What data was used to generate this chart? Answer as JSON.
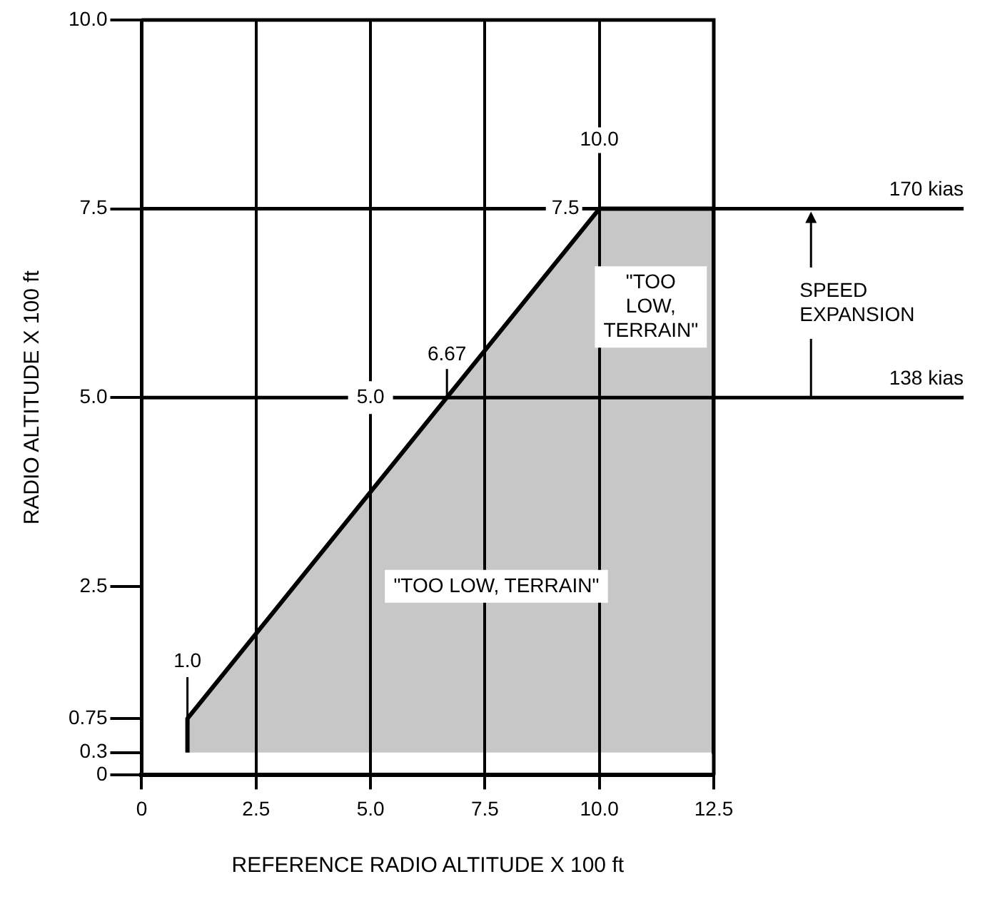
{
  "chart_data": {
    "type": "area",
    "xlabel": "REFERENCE RADIO ALTITUDE X 100 ft",
    "ylabel": "RADIO ALTITUDE X 100 ft",
    "series": [
      {
        "x": [
          1.0,
          1.0,
          10.0,
          12.5,
          12.5
        ],
        "values": [
          0.3,
          0.75,
          7.5,
          7.5,
          0.3
        ],
        "color": "#000000"
      }
    ],
    "xlim": [
      0,
      12.5
    ],
    "xticks": [
      0,
      2.5,
      {
        "value": 5,
        "label": "5.0"
      },
      7.5,
      {
        "value": 10,
        "label": "10.0"
      },
      12.5
    ],
    "ylim": [
      0,
      10
    ],
    "yticks": [
      0,
      0.3,
      0.75,
      2.5,
      {
        "value": 5,
        "label": "5.0"
      },
      7.5,
      {
        "value": 10,
        "label": "10.0"
      }
    ],
    "grid": "x",
    "ref_lines": [
      {
        "axis": "y",
        "value": 7.5,
        "label": "170 kias"
      },
      {
        "axis": "y",
        "value": 5.0,
        "label": "138 kias"
      }
    ],
    "annotations": [
      {
        "text": "10.0",
        "x": 10.0,
        "y": 7.5
      },
      {
        "text": "7.5",
        "x": 10.0,
        "y": 7.5
      },
      {
        "text": "6.67",
        "x": 6.67,
        "y": 5.0
      },
      {
        "text": "5.0",
        "x": 5.0,
        "y": 5.0
      },
      {
        "text": "1.0",
        "x": 1.0,
        "y": 0.75
      },
      "\"TOO LOW, TERRAIN\"",
      "\"TOO\nLOW,\nTERRAIN\"",
      "SPEED\nEXPANSION"
    ],
    "marker": "none"
  }
}
